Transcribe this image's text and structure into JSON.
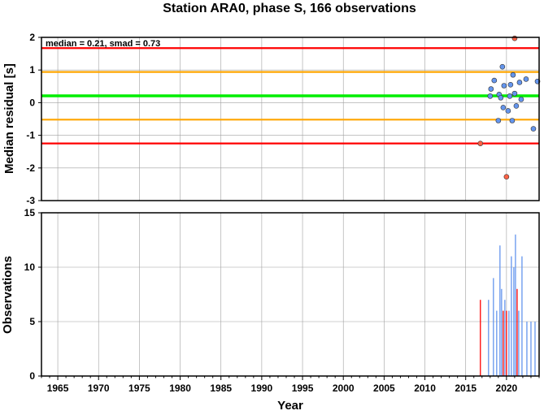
{
  "chart_data": [
    {
      "type": "scatter",
      "title": "Station ARA0, phase S, 166 observations",
      "ylabel": "Median residual [s]",
      "annotation": "median = 0.21, smad = 0.73",
      "xlim": [
        1963,
        2024
      ],
      "ylim": [
        -3,
        2
      ],
      "x_ticks": [
        1965,
        1970,
        1975,
        1980,
        1985,
        1990,
        1995,
        2000,
        2005,
        2010,
        2015,
        2020
      ],
      "y_ticks": [
        -3,
        -2,
        -1,
        0,
        1,
        2
      ],
      "grid": true,
      "reference_lines": [
        {
          "y": 1.67,
          "color": "#ff0000"
        },
        {
          "y": 0.94,
          "color": "#ffa500"
        },
        {
          "y": 0.21,
          "color": "#00ee00"
        },
        {
          "y": -0.52,
          "color": "#ffa500"
        },
        {
          "y": -1.25,
          "color": "#ff0000"
        }
      ],
      "series": [
        {
          "color": "#6495ed",
          "points": [
            [
              2018.0,
              0.2
            ],
            [
              2018.1,
              0.42
            ],
            [
              2018.5,
              0.68
            ],
            [
              2019.0,
              -0.55
            ],
            [
              2019.1,
              0.25
            ],
            [
              2019.3,
              0.15
            ],
            [
              2019.5,
              1.1
            ],
            [
              2019.6,
              -0.15
            ],
            [
              2019.7,
              0.52
            ],
            [
              2020.2,
              -0.25
            ],
            [
              2020.4,
              0.2
            ],
            [
              2020.5,
              0.55
            ],
            [
              2020.7,
              -0.55
            ],
            [
              2020.8,
              0.85
            ],
            [
              2021.0,
              0.28
            ],
            [
              2021.2,
              -0.1
            ],
            [
              2021.6,
              0.62
            ],
            [
              2021.8,
              0.1
            ],
            [
              2022.4,
              0.72
            ],
            [
              2023.3,
              -0.8
            ],
            [
              2023.8,
              0.65
            ]
          ]
        },
        {
          "color": "#ff6347",
          "points": [
            [
              2016.8,
              -1.25
            ],
            [
              2020.0,
              -2.27
            ],
            [
              2021.0,
              1.97
            ]
          ]
        }
      ]
    },
    {
      "type": "bar",
      "ylabel": "Observations",
      "xlabel": "Year",
      "xlim": [
        1963,
        2024
      ],
      "ylim": [
        0,
        15
      ],
      "x_ticks": [
        1965,
        1970,
        1975,
        1980,
        1985,
        1990,
        1995,
        2000,
        2005,
        2010,
        2015,
        2020
      ],
      "y_ticks": [
        0,
        5,
        10,
        15
      ],
      "grid": true,
      "series": [
        {
          "color": "#6495ed",
          "bars": [
            [
              2017.8,
              7
            ],
            [
              2018.4,
              9
            ],
            [
              2018.8,
              6
            ],
            [
              2019.2,
              12
            ],
            [
              2019.4,
              8
            ],
            [
              2019.8,
              7
            ],
            [
              2020.3,
              6
            ],
            [
              2020.6,
              11
            ],
            [
              2020.9,
              10
            ],
            [
              2021.1,
              13
            ],
            [
              2021.5,
              6
            ],
            [
              2021.9,
              11
            ],
            [
              2022.5,
              5
            ],
            [
              2023.0,
              5
            ],
            [
              2023.5,
              5
            ]
          ]
        },
        {
          "color": "#ff0000",
          "bars": [
            [
              2016.8,
              7
            ],
            [
              2019.6,
              6
            ],
            [
              2020.0,
              6
            ],
            [
              2021.3,
              8
            ]
          ]
        }
      ]
    }
  ]
}
